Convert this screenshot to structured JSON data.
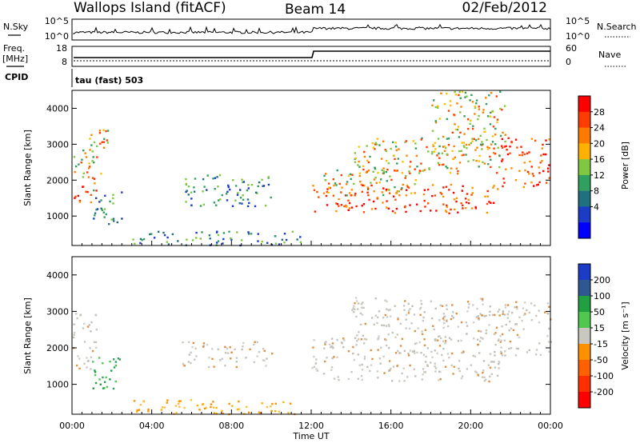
{
  "header": {
    "station": "Wallops Island (fitACF)",
    "beam": "Beam 14",
    "date": "02/Feb/2012"
  },
  "status_panels": {
    "nsky_label": "N.Sky",
    "nsearch_label": "N.Search",
    "freq_label": "Freq.",
    "freq_unit": "[MHz]",
    "nave_label": "Nave",
    "cpid_label": "CPID",
    "cpid_value": "tau (fast) 503",
    "noise_left_ticks": [
      "10^5",
      "10^0"
    ],
    "noise_right_ticks": [
      "10^5",
      "10^0"
    ],
    "freq_ticks": [
      "18",
      "8"
    ],
    "nave_ticks": [
      "60",
      "0"
    ]
  },
  "chart_data": [
    {
      "type": "heatmap",
      "title": "",
      "xlabel": "",
      "ylabel": "Slant Range [km]",
      "xlim": [
        0,
        24
      ],
      "ylim": [
        180,
        4500
      ],
      "x_ticks": [
        "00:00",
        "04:00",
        "08:00",
        "12:00",
        "16:00",
        "20:00",
        "00:00"
      ],
      "y_ticks": [
        "1000",
        "2000",
        "3000",
        "4000"
      ],
      "colorbar_label": "Power [dB]",
      "colorbar_ticks": [
        "28",
        "24",
        "20",
        "16",
        "12",
        "8",
        "4"
      ],
      "colorbar_colors": [
        "#ff0000",
        "#ff3c00",
        "#ff7a00",
        "#ffb000",
        "#80c840",
        "#30a060",
        "#207080",
        "#1c3cc8",
        "#0000ff"
      ],
      "regions": [
        {
          "t0": 0.0,
          "t1": 1.2,
          "r0": 1400,
          "r1": 2100,
          "level": "high"
        },
        {
          "t0": 0.0,
          "t1": 1.0,
          "r0": 2100,
          "r1": 3000,
          "level": "mid"
        },
        {
          "t0": 0.8,
          "t1": 1.8,
          "r0": 2200,
          "r1": 3500,
          "level": "mid"
        },
        {
          "t0": 1.0,
          "t1": 2.5,
          "r0": 800,
          "r1": 1800,
          "level": "low"
        },
        {
          "t0": 5.5,
          "t1": 10.0,
          "r0": 1300,
          "r1": 2200,
          "level": "low"
        },
        {
          "t0": 3.0,
          "t1": 11.5,
          "r0": 200,
          "r1": 600,
          "level": "low"
        },
        {
          "t0": 12.0,
          "t1": 21.5,
          "r0": 1100,
          "r1": 1900,
          "level": "high"
        },
        {
          "t0": 12.5,
          "t1": 17.5,
          "r0": 1600,
          "r1": 2300,
          "level": "mid"
        },
        {
          "t0": 14.0,
          "t1": 21.5,
          "r0": 2200,
          "r1": 3200,
          "level": "mid"
        },
        {
          "t0": 18.0,
          "t1": 21.7,
          "r0": 2700,
          "r1": 4500,
          "level": "mid"
        },
        {
          "t0": 21.5,
          "t1": 24.0,
          "r0": 1800,
          "r1": 3200,
          "level": "high"
        }
      ]
    },
    {
      "type": "heatmap",
      "title": "",
      "xlabel": "Time UT",
      "ylabel": "Slant Range [km]",
      "xlim": [
        0,
        24
      ],
      "ylim": [
        180,
        4500
      ],
      "x_ticks": [
        "00:00",
        "04:00",
        "08:00",
        "12:00",
        "16:00",
        "20:00",
        "00:00"
      ],
      "y_ticks": [
        "1000",
        "2000",
        "3000",
        "4000"
      ],
      "colorbar_label": "Velocity [m s⁻¹]",
      "colorbar_ticks": [
        "200",
        "100",
        "50",
        "15",
        "-15",
        "-50",
        "-100",
        "-200"
      ],
      "colorbar_colors": [
        "#1c3cc8",
        "#305890",
        "#20a040",
        "#50c850",
        "#c8c8c0",
        "#ff9000",
        "#ff6000",
        "#ff3000",
        "#ff0000"
      ],
      "regions": [
        {
          "t0": 0.0,
          "t1": 1.2,
          "r0": 1400,
          "r1": 3000,
          "level": "ground"
        },
        {
          "t0": 1.0,
          "t1": 2.5,
          "r0": 800,
          "r1": 1800,
          "level": "pos"
        },
        {
          "t0": 3.0,
          "t1": 11.5,
          "r0": 200,
          "r1": 600,
          "level": "neg"
        },
        {
          "t0": 5.5,
          "t1": 10.0,
          "r0": 1500,
          "r1": 2200,
          "level": "ground"
        },
        {
          "t0": 12.0,
          "t1": 21.5,
          "r0": 1100,
          "r1": 2300,
          "level": "ground"
        },
        {
          "t0": 14.0,
          "t1": 21.5,
          "r0": 2200,
          "r1": 3400,
          "level": "ground"
        },
        {
          "t0": 21.5,
          "t1": 24.0,
          "r0": 1800,
          "r1": 3300,
          "level": "ground"
        }
      ]
    }
  ]
}
